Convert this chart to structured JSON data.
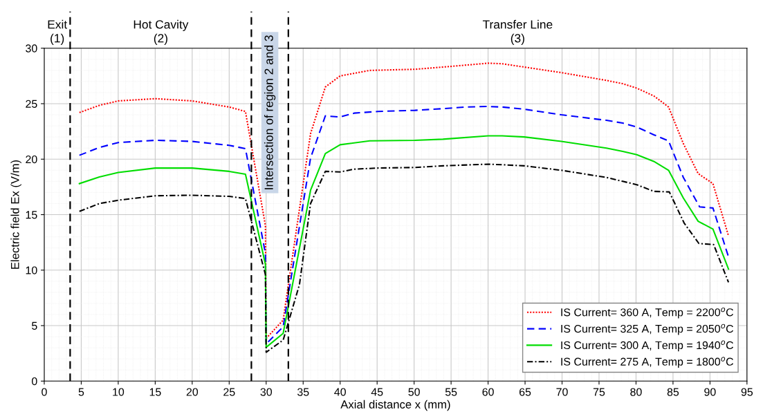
{
  "chart_data": {
    "type": "line",
    "xlabel": "Axial distance x (mm)",
    "ylabel": "Electric field Ex (V/m)",
    "xlim": [
      0,
      95
    ],
    "xticks": [
      0,
      5,
      10,
      15,
      20,
      25,
      30,
      35,
      40,
      45,
      50,
      55,
      60,
      65,
      70,
      75,
      80,
      85,
      90,
      95
    ],
    "ylim": [
      0,
      30
    ],
    "yticks": [
      0,
      5,
      10,
      15,
      20,
      25,
      30
    ],
    "grid": true,
    "legend": "bottom right",
    "marker": "none",
    "series": [
      {
        "name": "IS Current= 360 A, Temp = 2200$^{o}$C",
        "color": "#ff0000",
        "line_style": "dotted",
        "x": [
          4.75,
          7.45,
          10,
          15,
          20,
          25,
          27.2,
          29.9,
          30,
          32.3,
          36,
          38,
          40,
          44,
          50.1,
          53.9,
          60,
          61.9,
          64.9,
          69.9,
          76,
          78.2,
          80.1,
          82.4,
          84.4,
          86.4,
          88.4,
          90.4,
          92.5
        ],
        "values": [
          24.2,
          24.85,
          25.25,
          25.45,
          25.25,
          24.7,
          24.3,
          14.0,
          3.85,
          5.5,
          22.3,
          26.5,
          27.5,
          28.0,
          28.1,
          28.3,
          28.65,
          28.6,
          28.3,
          27.8,
          27.1,
          26.8,
          26.4,
          25.7,
          24.7,
          21.4,
          18.7,
          17.8,
          13.1
        ]
      },
      {
        "name": "IS Current= 325 A, Temp = 2050$^{o}$C",
        "color": "#0000ff",
        "line_style": "dashed",
        "x": [
          4.75,
          7.45,
          10,
          15,
          20,
          25,
          27.2,
          29.9,
          30,
          32.3,
          36,
          38,
          40,
          41.9,
          45.1,
          50.1,
          53.9,
          56.9,
          60,
          61.9,
          64.9,
          69.9,
          76,
          78.2,
          80.1,
          82.4,
          84.4,
          86.4,
          88.6,
          90.4,
          92.5
        ],
        "values": [
          20.35,
          21.05,
          21.5,
          21.7,
          21.6,
          21.25,
          20.95,
          11.5,
          3.35,
          4.9,
          20.1,
          23.9,
          23.8,
          24.15,
          24.3,
          24.4,
          24.55,
          24.7,
          24.75,
          24.7,
          24.5,
          24.0,
          23.5,
          23.25,
          22.9,
          22.2,
          21.65,
          18.35,
          15.7,
          15.6,
          11.2
        ]
      },
      {
        "name": "IS Current= 300 A, Temp = 1940$^{o}$C",
        "color": "#00dd00",
        "line_style": "solid",
        "x": [
          4.75,
          7.45,
          10,
          15,
          20,
          25,
          27.2,
          29.9,
          30,
          32.3,
          36,
          38,
          40,
          44,
          50.1,
          53.9,
          60,
          61.9,
          64.9,
          69.9,
          76,
          78.2,
          80.1,
          82.4,
          84.4,
          86.4,
          88.4,
          90.4,
          92.5
        ],
        "values": [
          17.8,
          18.4,
          18.8,
          19.2,
          19.2,
          18.9,
          18.65,
          10.5,
          3.05,
          4.3,
          17.2,
          20.5,
          21.3,
          21.65,
          21.7,
          21.8,
          22.1,
          22.1,
          22.0,
          21.6,
          21.0,
          20.7,
          20.4,
          19.8,
          19.0,
          16.5,
          14.4,
          13.7,
          10.1
        ]
      },
      {
        "name": "IS Current= 275 A, Temp = 1800$^{o}$C",
        "color": "#000000",
        "line_style": "dashdot",
        "x": [
          4.75,
          7.45,
          10,
          15,
          20,
          25,
          27.2,
          29.9,
          30,
          32.3,
          34.5,
          36,
          38,
          40,
          41.9,
          45.1,
          50.1,
          53.9,
          60,
          61.9,
          64.9,
          69.9,
          76,
          78.2,
          80.1,
          82.4,
          84.5,
          86.5,
          88.5,
          90.5,
          92.5
        ],
        "values": [
          15.3,
          16.0,
          16.3,
          16.7,
          16.75,
          16.65,
          16.45,
          9.6,
          2.6,
          3.7,
          8.7,
          16.0,
          18.9,
          18.85,
          19.1,
          19.2,
          19.25,
          19.4,
          19.55,
          19.5,
          19.4,
          19.0,
          18.35,
          18.0,
          17.7,
          17.1,
          17.05,
          14.25,
          12.4,
          12.3,
          8.9
        ]
      }
    ],
    "ref_lines": [
      {
        "axis": "x",
        "value": 3.5,
        "color": "#000000",
        "line_style": "dashed"
      },
      {
        "axis": "x",
        "value": 28,
        "color": "#000000",
        "line_style": "dashed"
      },
      {
        "axis": "x",
        "value": 33,
        "color": "#000000",
        "line_style": "dashed"
      }
    ],
    "annotations": [
      "Exit\n(1)",
      "Hot Cavity\n(2)",
      "Intersection of region 2 and 3",
      "Transfer Line\n(3)"
    ]
  }
}
